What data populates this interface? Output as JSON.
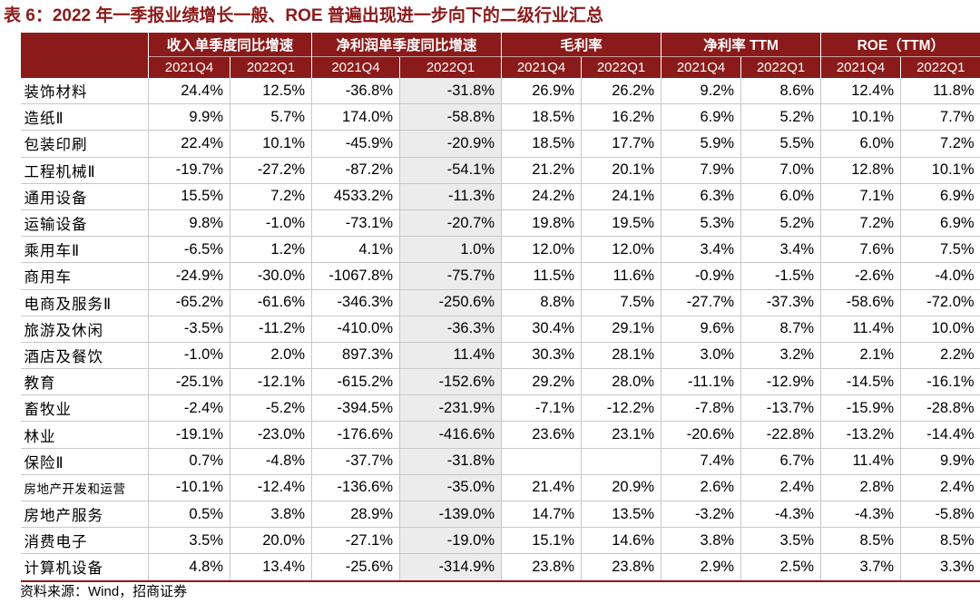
{
  "title": "表 6：2022 年一季报业绩增长一般、ROE 普遍出现进一步向下的二级行业汇总",
  "header": {
    "groups": [
      "收入单季度同比增速",
      "净利润单季度同比增速",
      "毛利率",
      "净利率 TTM",
      "ROE（TTM）"
    ],
    "periods": [
      "2021Q4",
      "2022Q1",
      "2021Q4",
      "2022Q1",
      "2021Q4",
      "2022Q1",
      "2021Q4",
      "2022Q1",
      "2021Q4",
      "2022Q1"
    ]
  },
  "rows": [
    {
      "name": "装饰材料",
      "v": [
        "24.4%",
        "12.5%",
        "-36.8%",
        "-31.8%",
        "26.9%",
        "26.2%",
        "9.2%",
        "8.6%",
        "12.4%",
        "11.8%"
      ]
    },
    {
      "name": "造纸Ⅱ",
      "v": [
        "9.9%",
        "5.7%",
        "174.0%",
        "-58.8%",
        "18.5%",
        "16.2%",
        "6.9%",
        "5.2%",
        "10.1%",
        "7.7%"
      ]
    },
    {
      "name": "包装印刷",
      "v": [
        "22.4%",
        "10.1%",
        "-45.9%",
        "-20.9%",
        "18.5%",
        "17.7%",
        "5.9%",
        "5.5%",
        "6.0%",
        "7.2%"
      ]
    },
    {
      "name": "工程机械Ⅱ",
      "v": [
        "-19.7%",
        "-27.2%",
        "-87.2%",
        "-54.1%",
        "21.2%",
        "20.1%",
        "7.9%",
        "7.0%",
        "12.8%",
        "10.1%"
      ]
    },
    {
      "name": "通用设备",
      "v": [
        "15.5%",
        "7.2%",
        "4533.2%",
        "-11.3%",
        "24.2%",
        "24.1%",
        "6.3%",
        "6.0%",
        "7.1%",
        "6.9%"
      ]
    },
    {
      "name": "运输设备",
      "v": [
        "9.8%",
        "-1.0%",
        "-73.1%",
        "-20.7%",
        "19.8%",
        "19.5%",
        "5.3%",
        "5.2%",
        "7.2%",
        "6.9%"
      ]
    },
    {
      "name": "乘用车Ⅱ",
      "v": [
        "-6.5%",
        "1.2%",
        "4.1%",
        "1.0%",
        "12.0%",
        "12.0%",
        "3.4%",
        "3.4%",
        "7.6%",
        "7.5%"
      ]
    },
    {
      "name": "商用车",
      "v": [
        "-24.9%",
        "-30.0%",
        "-1067.8%",
        "-75.7%",
        "11.5%",
        "11.6%",
        "-0.9%",
        "-1.5%",
        "-2.6%",
        "-4.0%"
      ]
    },
    {
      "name": "电商及服务Ⅱ",
      "v": [
        "-65.2%",
        "-61.6%",
        "-346.3%",
        "-250.6%",
        "8.8%",
        "7.5%",
        "-27.7%",
        "-37.3%",
        "-58.6%",
        "-72.0%"
      ]
    },
    {
      "name": "旅游及休闲",
      "v": [
        "-3.5%",
        "-11.2%",
        "-410.0%",
        "-36.3%",
        "30.4%",
        "29.1%",
        "9.6%",
        "8.7%",
        "11.4%",
        "10.0%"
      ]
    },
    {
      "name": "酒店及餐饮",
      "v": [
        "-1.0%",
        "2.0%",
        "897.3%",
        "11.4%",
        "30.3%",
        "28.1%",
        "3.0%",
        "3.2%",
        "2.1%",
        "2.2%"
      ]
    },
    {
      "name": "教育",
      "v": [
        "-25.1%",
        "-12.1%",
        "-615.2%",
        "-152.6%",
        "29.2%",
        "28.0%",
        "-11.1%",
        "-12.9%",
        "-14.5%",
        "-16.1%"
      ]
    },
    {
      "name": "畜牧业",
      "v": [
        "-2.4%",
        "-5.2%",
        "-394.5%",
        "-231.9%",
        "-7.1%",
        "-12.2%",
        "-7.8%",
        "-13.7%",
        "-15.9%",
        "-28.8%"
      ]
    },
    {
      "name": "林业",
      "v": [
        "-19.1%",
        "-23.0%",
        "-176.6%",
        "-416.6%",
        "23.6%",
        "23.1%",
        "-20.6%",
        "-22.8%",
        "-13.2%",
        "-14.4%"
      ]
    },
    {
      "name": "保险Ⅱ",
      "v": [
        "0.7%",
        "-4.8%",
        "-37.7%",
        "-31.8%",
        "",
        "",
        "7.4%",
        "6.7%",
        "11.4%",
        "9.9%"
      ]
    },
    {
      "name": "房地产开发和运营",
      "small": true,
      "v": [
        "-10.1%",
        "-12.4%",
        "-136.6%",
        "-35.0%",
        "21.4%",
        "20.9%",
        "2.6%",
        "2.4%",
        "2.8%",
        "2.4%"
      ]
    },
    {
      "name": "房地产服务",
      "v": [
        "0.5%",
        "3.8%",
        "28.9%",
        "-139.0%",
        "14.7%",
        "13.5%",
        "-3.2%",
        "-4.3%",
        "-4.3%",
        "-5.8%"
      ]
    },
    {
      "name": "消费电子",
      "v": [
        "3.5%",
        "20.0%",
        "-27.1%",
        "-19.0%",
        "15.1%",
        "14.6%",
        "3.8%",
        "3.5%",
        "8.5%",
        "8.5%"
      ]
    },
    {
      "name": "计算机设备",
      "v": [
        "4.8%",
        "13.4%",
        "-25.6%",
        "-314.9%",
        "23.8%",
        "23.8%",
        "2.9%",
        "2.5%",
        "3.7%",
        "3.3%"
      ]
    }
  ],
  "source": "资料来源：Wind，招商证券"
}
